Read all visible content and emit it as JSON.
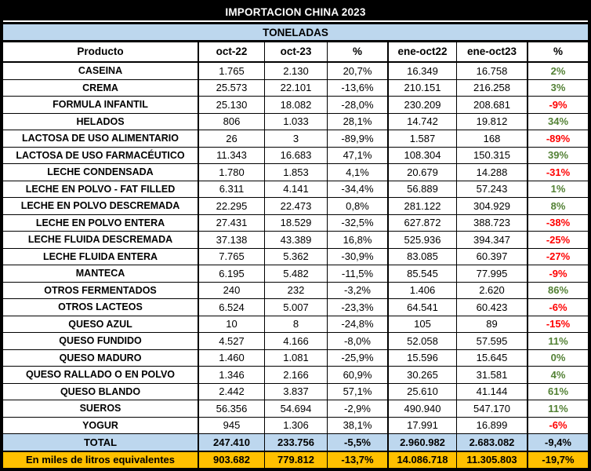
{
  "chart_data": {
    "type": "table",
    "title": "IMPORTACION CHINA 2023",
    "subtitle": "TONELADAS",
    "columns": [
      "Producto",
      "oct-22",
      "oct-23",
      "%",
      "ene-oct22",
      "ene-oct23",
      "%"
    ],
    "rows": [
      {
        "cells": [
          "CASEINA",
          "1.765",
          "2.130",
          "20,7%",
          "16.349",
          "16.758",
          "2%"
        ],
        "trend": "up"
      },
      {
        "cells": [
          "CREMA",
          "25.573",
          "22.101",
          "-13,6%",
          "210.151",
          "216.258",
          "3%"
        ],
        "trend": "up"
      },
      {
        "cells": [
          "FORMULA INFANTIL",
          "25.130",
          "18.082",
          "-28,0%",
          "230.209",
          "208.681",
          "-9%"
        ],
        "trend": "down"
      },
      {
        "cells": [
          "HELADOS",
          "806",
          "1.033",
          "28,1%",
          "14.742",
          "19.812",
          "34%"
        ],
        "trend": "up"
      },
      {
        "cells": [
          "LACTOSA DE USO ALIMENTARIO",
          "26",
          "3",
          "-89,9%",
          "1.587",
          "168",
          "-89%"
        ],
        "trend": "down"
      },
      {
        "cells": [
          "LACTOSA DE USO FARMACÉUTICO",
          "11.343",
          "16.683",
          "47,1%",
          "108.304",
          "150.315",
          "39%"
        ],
        "trend": "up"
      },
      {
        "cells": [
          "LECHE CONDENSADA",
          "1.780",
          "1.853",
          "4,1%",
          "20.679",
          "14.288",
          "-31%"
        ],
        "trend": "down"
      },
      {
        "cells": [
          "LECHE EN POLVO - FAT FILLED",
          "6.311",
          "4.141",
          "-34,4%",
          "56.889",
          "57.243",
          "1%"
        ],
        "trend": "up"
      },
      {
        "cells": [
          "LECHE EN POLVO DESCREMADA",
          "22.295",
          "22.473",
          "0,8%",
          "281.122",
          "304.929",
          "8%"
        ],
        "trend": "up"
      },
      {
        "cells": [
          "LECHE EN POLVO ENTERA",
          "27.431",
          "18.529",
          "-32,5%",
          "627.872",
          "388.723",
          "-38%"
        ],
        "trend": "down"
      },
      {
        "cells": [
          "LECHE FLUIDA DESCREMADA",
          "37.138",
          "43.389",
          "16,8%",
          "525.936",
          "394.347",
          "-25%"
        ],
        "trend": "down"
      },
      {
        "cells": [
          "LECHE FLUIDA ENTERA",
          "7.765",
          "5.362",
          "-30,9%",
          "83.085",
          "60.397",
          "-27%"
        ],
        "trend": "down"
      },
      {
        "cells": [
          "MANTECA",
          "6.195",
          "5.482",
          "-11,5%",
          "85.545",
          "77.995",
          "-9%"
        ],
        "trend": "down"
      },
      {
        "cells": [
          "OTROS FERMENTADOS",
          "240",
          "232",
          "-3,2%",
          "1.406",
          "2.620",
          "86%"
        ],
        "trend": "up"
      },
      {
        "cells": [
          "OTROS LACTEOS",
          "6.524",
          "5.007",
          "-23,3%",
          "64.541",
          "60.423",
          "-6%"
        ],
        "trend": "down"
      },
      {
        "cells": [
          "QUESO AZUL",
          "10",
          "8",
          "-24,8%",
          "105",
          "89",
          "-15%"
        ],
        "trend": "down"
      },
      {
        "cells": [
          "QUESO FUNDIDO",
          "4.527",
          "4.166",
          "-8,0%",
          "52.058",
          "57.595",
          "11%"
        ],
        "trend": "up"
      },
      {
        "cells": [
          "QUESO MADURO",
          "1.460",
          "1.081",
          "-25,9%",
          "15.596",
          "15.645",
          "0%"
        ],
        "trend": "up"
      },
      {
        "cells": [
          "QUESO RALLADO O EN POLVO",
          "1.346",
          "2.166",
          "60,9%",
          "30.265",
          "31.581",
          "4%"
        ],
        "trend": "up"
      },
      {
        "cells": [
          "QUESO BLANDO",
          "2.442",
          "3.837",
          "57,1%",
          "25.610",
          "41.144",
          "61%"
        ],
        "trend": "up"
      },
      {
        "cells": [
          "SUEROS",
          "56.356",
          "54.694",
          "-2,9%",
          "490.940",
          "547.170",
          "11%"
        ],
        "trend": "up"
      },
      {
        "cells": [
          "YOGUR",
          "945",
          "1.306",
          "38,1%",
          "17.991",
          "16.899",
          "-6%"
        ],
        "trend": "down"
      }
    ],
    "total_row": {
      "cells": [
        "TOTAL",
        "247.410",
        "233.756",
        "-5,5%",
        "2.960.982",
        "2.683.082",
        "-9,4%"
      ]
    },
    "footer_row": {
      "cells": [
        "En miles de litros equivalentes",
        "903.682",
        "779.812",
        "-13,7%",
        "14.086.718",
        "11.305.803",
        "-19,7%"
      ]
    }
  },
  "colors": {
    "positive": "#538135",
    "negative": "#FF0000",
    "title_bg": "#000000",
    "subtitle_bg": "#BDD7EE",
    "total_bg": "#BDD7EE",
    "footer_bg": "#FFC000"
  }
}
